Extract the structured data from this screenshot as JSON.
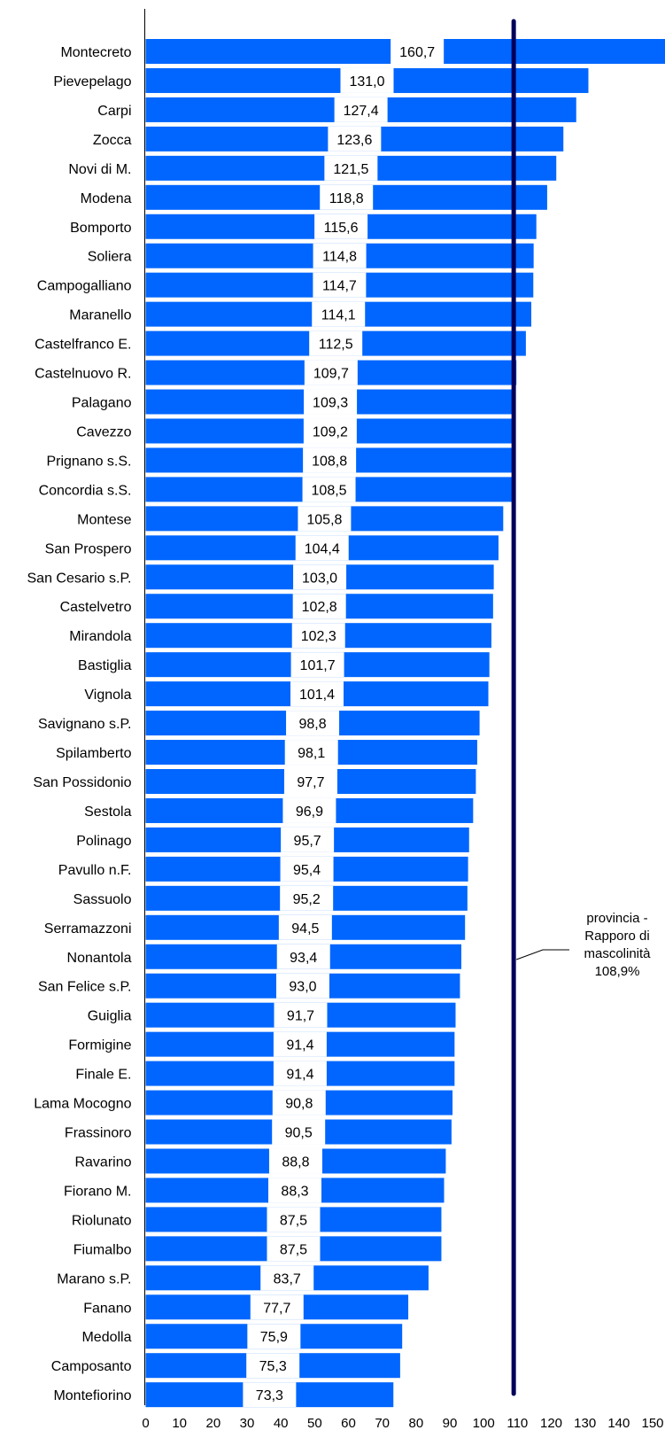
{
  "chart_data": {
    "type": "bar",
    "orientation": "horizontal",
    "title": "",
    "xlabel": "",
    "ylabel": "",
    "categories": [
      "Montecreto",
      "Pievepelago",
      "Carpi",
      "Zocca",
      "Novi di M.",
      "Modena",
      "Bomporto",
      "Soliera",
      "Campogalliano",
      "Maranello",
      "Castelfranco E.",
      "Castelnuovo R.",
      "Palagano",
      "Cavezzo",
      "Prignano s.S.",
      "Concordia s.S.",
      "Montese",
      "San Prospero",
      "San Cesario s.P.",
      "Castelvetro",
      "Mirandola",
      "Bastiglia",
      "Vignola",
      "Savignano s.P.",
      "Spilamberto",
      "San Possidonio",
      "Sestola",
      "Polinago",
      "Pavullo n.F.",
      "Sassuolo",
      "Serramazzoni",
      "Nonantola",
      "San Felice s.P.",
      "Guiglia",
      "Formigine",
      "Finale E.",
      "Lama Mocogno",
      "Frassinoro",
      "Ravarino",
      "Fiorano M.",
      "Riolunato",
      "Fiumalbo",
      "Marano s.P.",
      "Fanano",
      "Medolla",
      "Camposanto",
      "Montefiorino"
    ],
    "values": [
      160.7,
      131.0,
      127.4,
      123.6,
      121.5,
      118.8,
      115.6,
      114.8,
      114.7,
      114.1,
      112.5,
      109.7,
      109.3,
      109.2,
      108.8,
      108.5,
      105.8,
      104.4,
      103.0,
      102.8,
      102.3,
      101.7,
      101.4,
      98.8,
      98.1,
      97.7,
      96.9,
      95.7,
      95.4,
      95.2,
      94.5,
      93.4,
      93.0,
      91.7,
      91.4,
      91.4,
      90.8,
      90.5,
      88.8,
      88.3,
      87.5,
      87.5,
      83.7,
      77.7,
      75.9,
      75.3,
      73.3
    ],
    "value_labels": [
      "160,7",
      "131,0",
      "127,4",
      "123,6",
      "121,5",
      "118,8",
      "115,6",
      "114,8",
      "114,7",
      "114,1",
      "112,5",
      "109,7",
      "109,3",
      "109,2",
      "108,8",
      "108,5",
      "105,8",
      "104,4",
      "103,0",
      "102,8",
      "102,3",
      "101,7",
      "101,4",
      "98,8",
      "98,1",
      "97,7",
      "96,9",
      "95,7",
      "95,4",
      "95,2",
      "94,5",
      "93,4",
      "93,0",
      "91,7",
      "91,4",
      "91,4",
      "90,8",
      "90,5",
      "88,8",
      "88,3",
      "87,5",
      "87,5",
      "83,7",
      "77,7",
      "75,9",
      "75,3",
      "73,3"
    ],
    "xlim": [
      0,
      150
    ],
    "xticks": [
      0,
      10,
      20,
      30,
      40,
      50,
      60,
      70,
      80,
      90,
      100,
      110,
      120,
      130,
      140,
      150
    ],
    "reference_line": {
      "value": 108.9,
      "label_lines": [
        "provincia -",
        "Rapporo di",
        "mascolinità",
        "108,9%"
      ]
    },
    "grid": false,
    "legend": "none",
    "colors": {
      "bar": "#0066ff",
      "reference_line": "#00005a",
      "text": "#000000",
      "background": "#ffffff"
    }
  }
}
